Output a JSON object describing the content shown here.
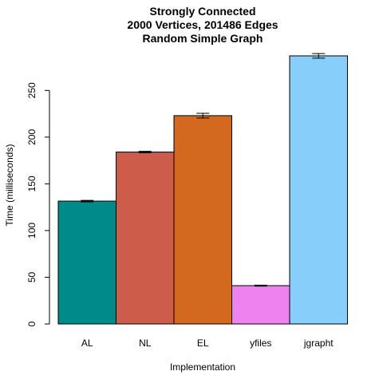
{
  "chart_data": {
    "type": "bar",
    "title_lines": [
      "Strongly Connected",
      "2000 Vertices, 201486 Edges",
      "Random Simple Graph"
    ],
    "xlabel": "Implementation",
    "ylabel": "Time (milliseconds)",
    "categories": [
      "AL",
      "NL",
      "EL",
      "yfiles",
      "jgrapht"
    ],
    "values": [
      131.5,
      184,
      223,
      41,
      287
    ],
    "errors": [
      0.8,
      0.8,
      2.5,
      0.5,
      2.5
    ],
    "colors": [
      "#008B8B",
      "#CD5C4A",
      "#D2691E",
      "#EE82EE",
      "#87CEFA"
    ],
    "ylim": [
      0,
      287
    ],
    "yticks": [
      0,
      50,
      100,
      150,
      200,
      250
    ],
    "grid": false,
    "legend": "none"
  }
}
